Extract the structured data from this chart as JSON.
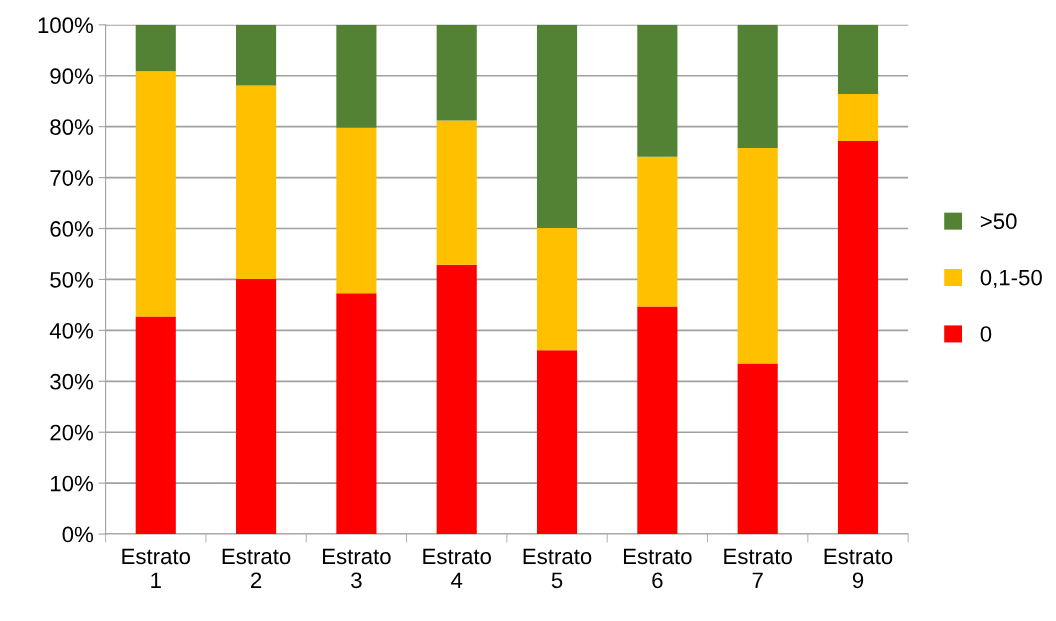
{
  "chart_data": {
    "type": "bar",
    "stacked": true,
    "categories": [
      "Estrato\n1",
      "Estrato\n2",
      "Estrato\n3",
      "Estrato\n4",
      "Estrato\n5",
      "Estrato\n6",
      "Estrato\n7",
      "Estrato\n9"
    ],
    "series": [
      {
        "name": "0",
        "color": "#ff0000",
        "values": [
          42.7,
          50.1,
          47.3,
          52.9,
          36.1,
          44.7,
          33.5,
          77.2
        ]
      },
      {
        "name": "0,1-50",
        "color": "#ffc000",
        "values": [
          48.2,
          38.0,
          32.5,
          28.3,
          24.0,
          29.4,
          42.3,
          9.2
        ]
      },
      {
        "name": ">50",
        "color": "#548235",
        "values": [
          9.1,
          11.9,
          20.2,
          18.8,
          39.9,
          25.9,
          24.2,
          13.6
        ]
      }
    ],
    "ylim": [
      0,
      100
    ],
    "yticks": [
      {
        "value": 0,
        "label": "0%"
      },
      {
        "value": 10,
        "label": "10%"
      },
      {
        "value": 20,
        "label": "20%"
      },
      {
        "value": 30,
        "label": "30%"
      },
      {
        "value": 40,
        "label": "40%"
      },
      {
        "value": 50,
        "label": "50%"
      },
      {
        "value": 60,
        "label": "60%"
      },
      {
        "value": 70,
        "label": "70%"
      },
      {
        "value": 80,
        "label": "80%"
      },
      {
        "value": 90,
        "label": "90%"
      },
      {
        "value": 100,
        "label": "100%"
      }
    ],
    "grid": "y",
    "legend": "right"
  }
}
